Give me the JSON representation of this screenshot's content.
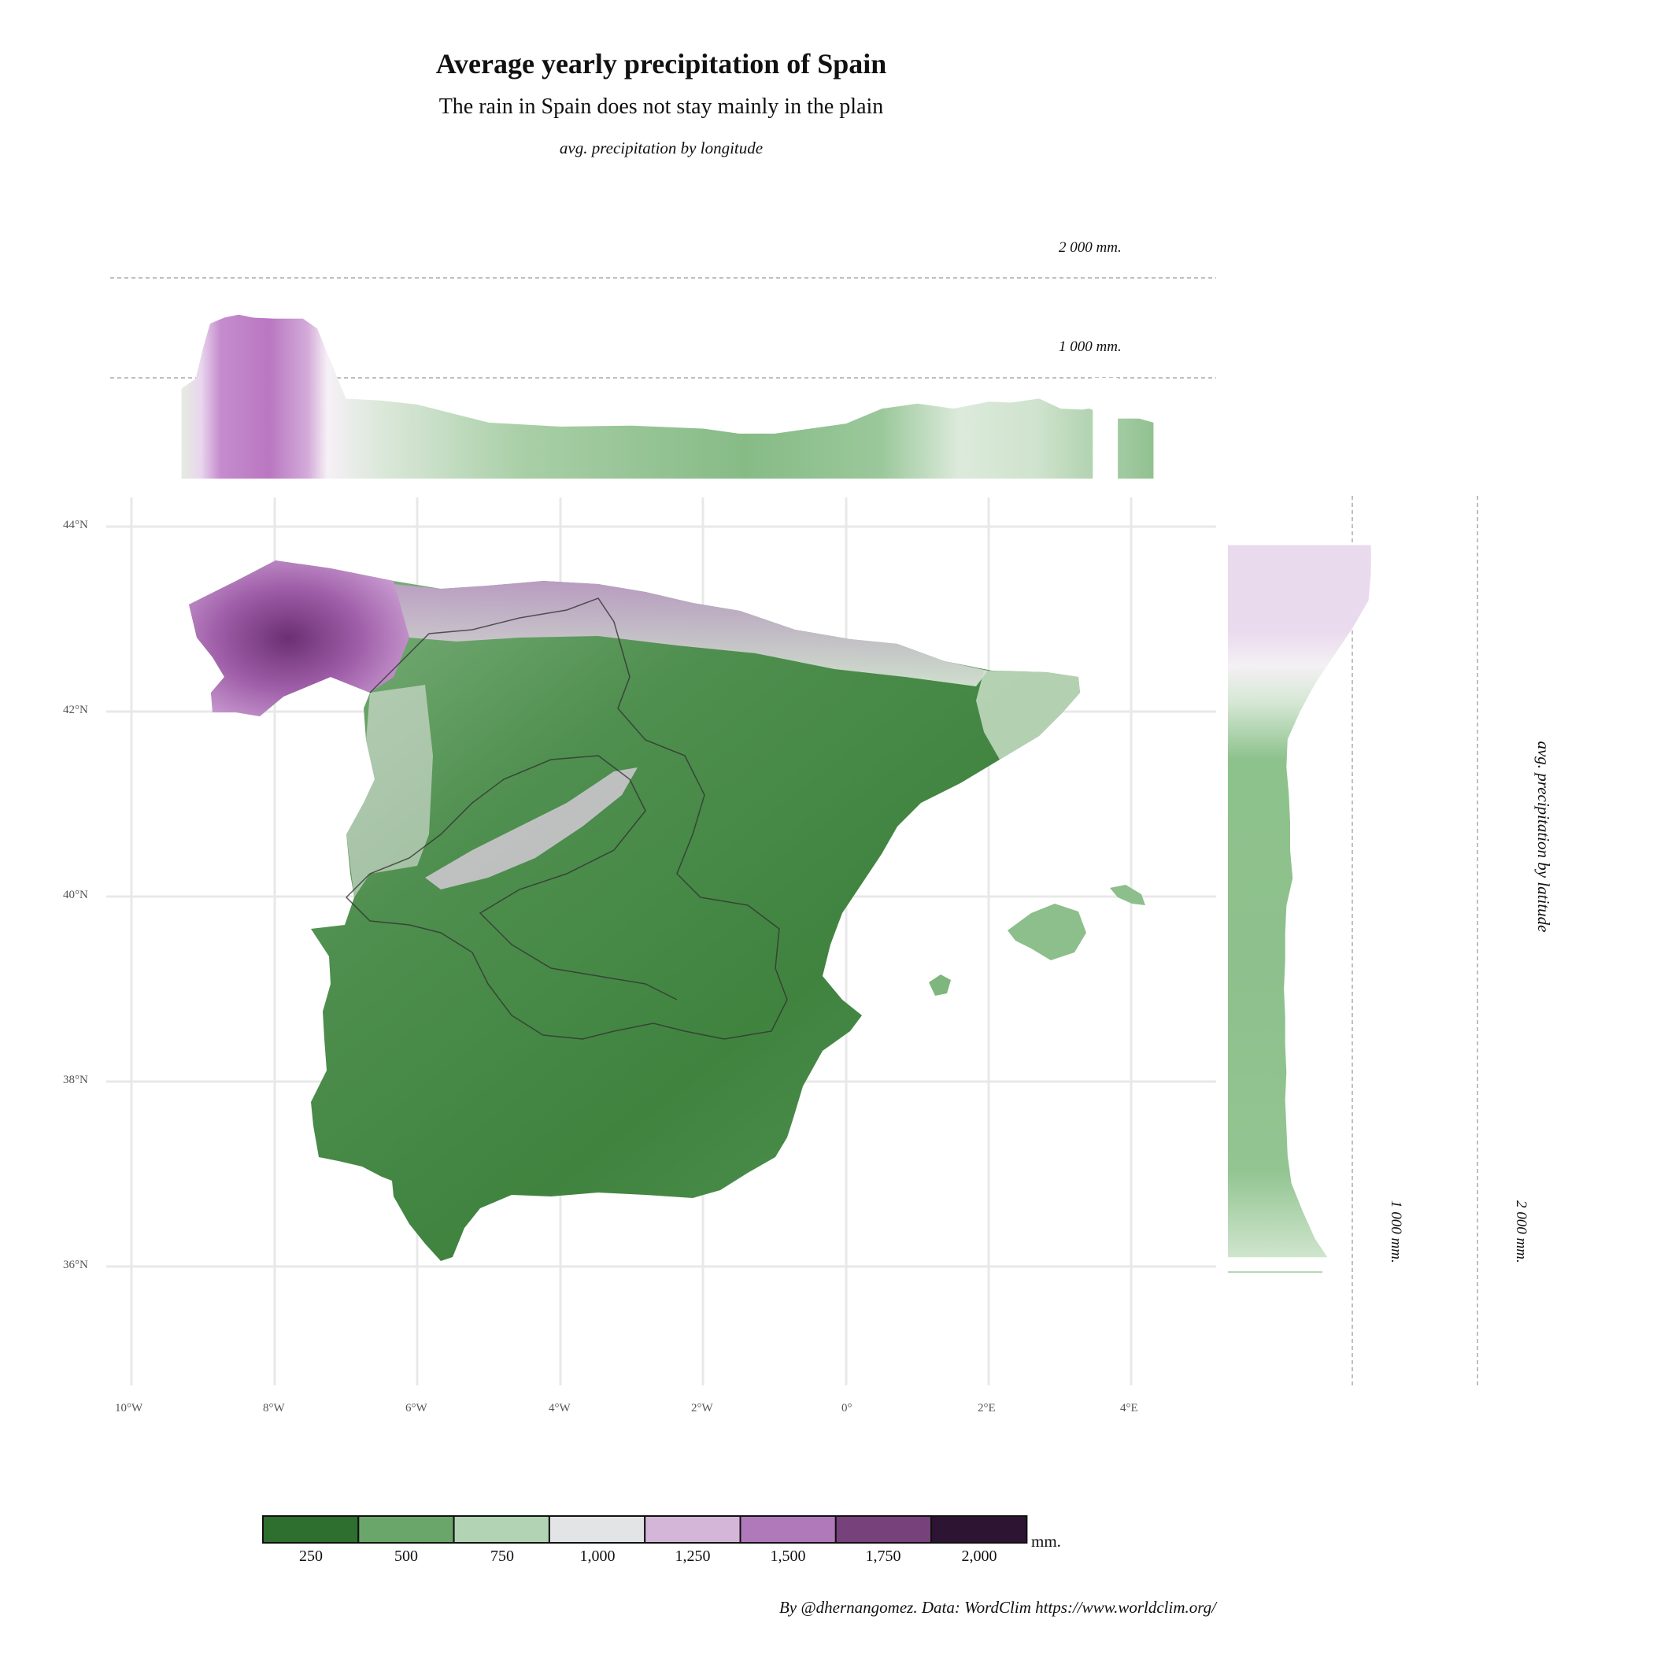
{
  "title": "Average yearly precipitation of Spain",
  "subtitle": "The rain in Spain does not stay mainly in the plain",
  "top_panel": {
    "caption": "avg. precipitation by longitude",
    "reference_labels": [
      "2 000 mm.",
      "1 000 mm."
    ]
  },
  "right_panel": {
    "caption": "avg. precipitation by latitude",
    "reference_labels": [
      "1 000 mm.",
      "2 000 mm."
    ]
  },
  "map": {
    "x_ticks": [
      "10°W",
      "8°W",
      "6°W",
      "4°W",
      "2°W",
      "0°",
      "2°E",
      "4°E"
    ],
    "y_ticks": [
      "44°N",
      "42°N",
      "40°N",
      "38°N",
      "36°N"
    ]
  },
  "legend": {
    "unit": "mm.",
    "labels": [
      "250",
      "500",
      "750",
      "1,000",
      "1,250",
      "1,500",
      "1,750",
      "2,000"
    ],
    "colors": [
      "#2e6e2e",
      "#6aa66a",
      "#b3d3b5",
      "#e3e4e6",
      "#d4b6d9",
      "#b07aba",
      "#77417c",
      "#2d1432"
    ]
  },
  "credit": "By @dhernangomez.  Data: WordClim https://www.worldclim.org/",
  "chart_data": [
    {
      "type": "area",
      "title": "avg. precipitation by longitude",
      "x_unit": "degrees longitude",
      "y_unit": "mm",
      "reference_lines": [
        1000,
        2000
      ],
      "x": [
        -9.3,
        -9.1,
        -9.0,
        -8.9,
        -8.7,
        -8.5,
        -8.3,
        -8.0,
        -7.8,
        -7.6,
        -7.4,
        -7.0,
        -6.5,
        -6.0,
        -5.0,
        -4.0,
        -3.0,
        -2.0,
        -1.5,
        -1.0,
        0.0,
        0.5,
        1.0,
        1.5,
        2.0,
        2.3,
        2.7,
        3.0,
        3.3,
        3.4,
        3.8,
        4.1,
        4.3
      ],
      "values": [
        900,
        1000,
        1300,
        1550,
        1610,
        1640,
        1610,
        1600,
        1600,
        1600,
        1500,
        800,
        780,
        740,
        560,
        520,
        530,
        500,
        450,
        450,
        550,
        700,
        750,
        700,
        770,
        760,
        800,
        700,
        690,
        700,
        600,
        600,
        560
      ]
    },
    {
      "type": "area",
      "title": "avg. precipitation by latitude",
      "x_unit": "degrees latitude",
      "y_unit": "mm",
      "reference_lines": [
        1000,
        2000
      ],
      "x": [
        43.8,
        43.5,
        43.2,
        42.9,
        42.6,
        42.3,
        42.0,
        41.7,
        41.4,
        41.1,
        40.8,
        40.5,
        40.2,
        39.9,
        39.6,
        39.3,
        39.0,
        38.7,
        38.4,
        38.1,
        37.8,
        37.5,
        37.2,
        36.9,
        36.6,
        36.3,
        36.1
      ],
      "values": [
        1150,
        1150,
        1130,
        1000,
        850,
        700,
        580,
        480,
        470,
        490,
        500,
        500,
        520,
        470,
        460,
        460,
        450,
        460,
        460,
        470,
        460,
        470,
        480,
        510,
        600,
        700,
        800
      ]
    }
  ]
}
